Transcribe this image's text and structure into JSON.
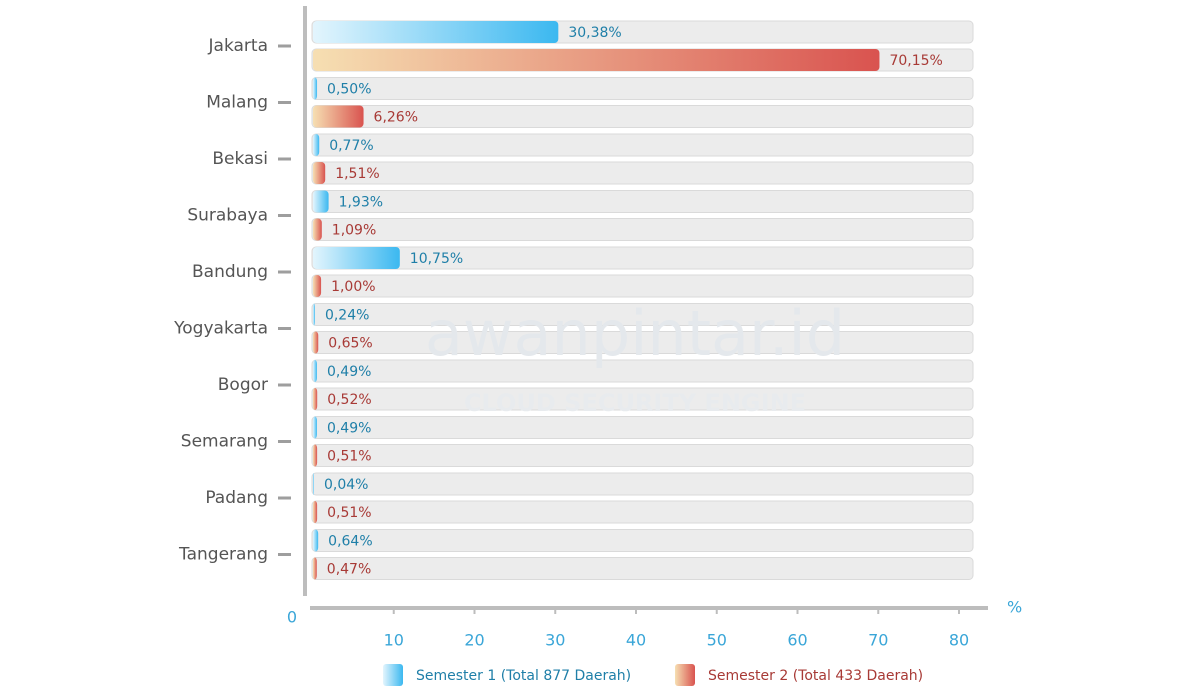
{
  "chart_data": {
    "type": "bar",
    "orientation": "horizontal",
    "categories": [
      "Jakarta",
      "Malang",
      "Bekasi",
      "Surabaya",
      "Bandung",
      "Yogyakarta",
      "Bogor",
      "Semarang",
      "Padang",
      "Tangerang"
    ],
    "series": [
      {
        "name": "Semester 1 (Total 877 Daerah)",
        "color": "#3bb8f0",
        "values": [
          30.38,
          0.5,
          0.77,
          1.93,
          10.75,
          0.24,
          0.49,
          0.49,
          0.04,
          0.64
        ],
        "value_labels": [
          "30,38%",
          "0,50%",
          "0,77%",
          "1,93%",
          "10,75%",
          "0,24%",
          "0,49%",
          "0,49%",
          "0,04%",
          "0,64%"
        ]
      },
      {
        "name": "Semester 2 (Total 433 Daerah)",
        "color": "#d9534f",
        "values": [
          70.15,
          6.26,
          1.51,
          1.09,
          1.0,
          0.65,
          0.52,
          0.51,
          0.51,
          0.47
        ],
        "value_labels": [
          "70,15%",
          "6,26%",
          "1,51%",
          "1,09%",
          "1,00%",
          "0,65%",
          "0,52%",
          "0,51%",
          "0,51%",
          "0,47%"
        ]
      }
    ],
    "xlim": [
      0,
      80
    ],
    "xticks": [
      0,
      10,
      20,
      30,
      40,
      50,
      60,
      70,
      80
    ],
    "xlabel": "%",
    "watermark": {
      "brand": "awanpintar.id",
      "tagline": "CLOUD SECURITY ENGINE"
    }
  }
}
